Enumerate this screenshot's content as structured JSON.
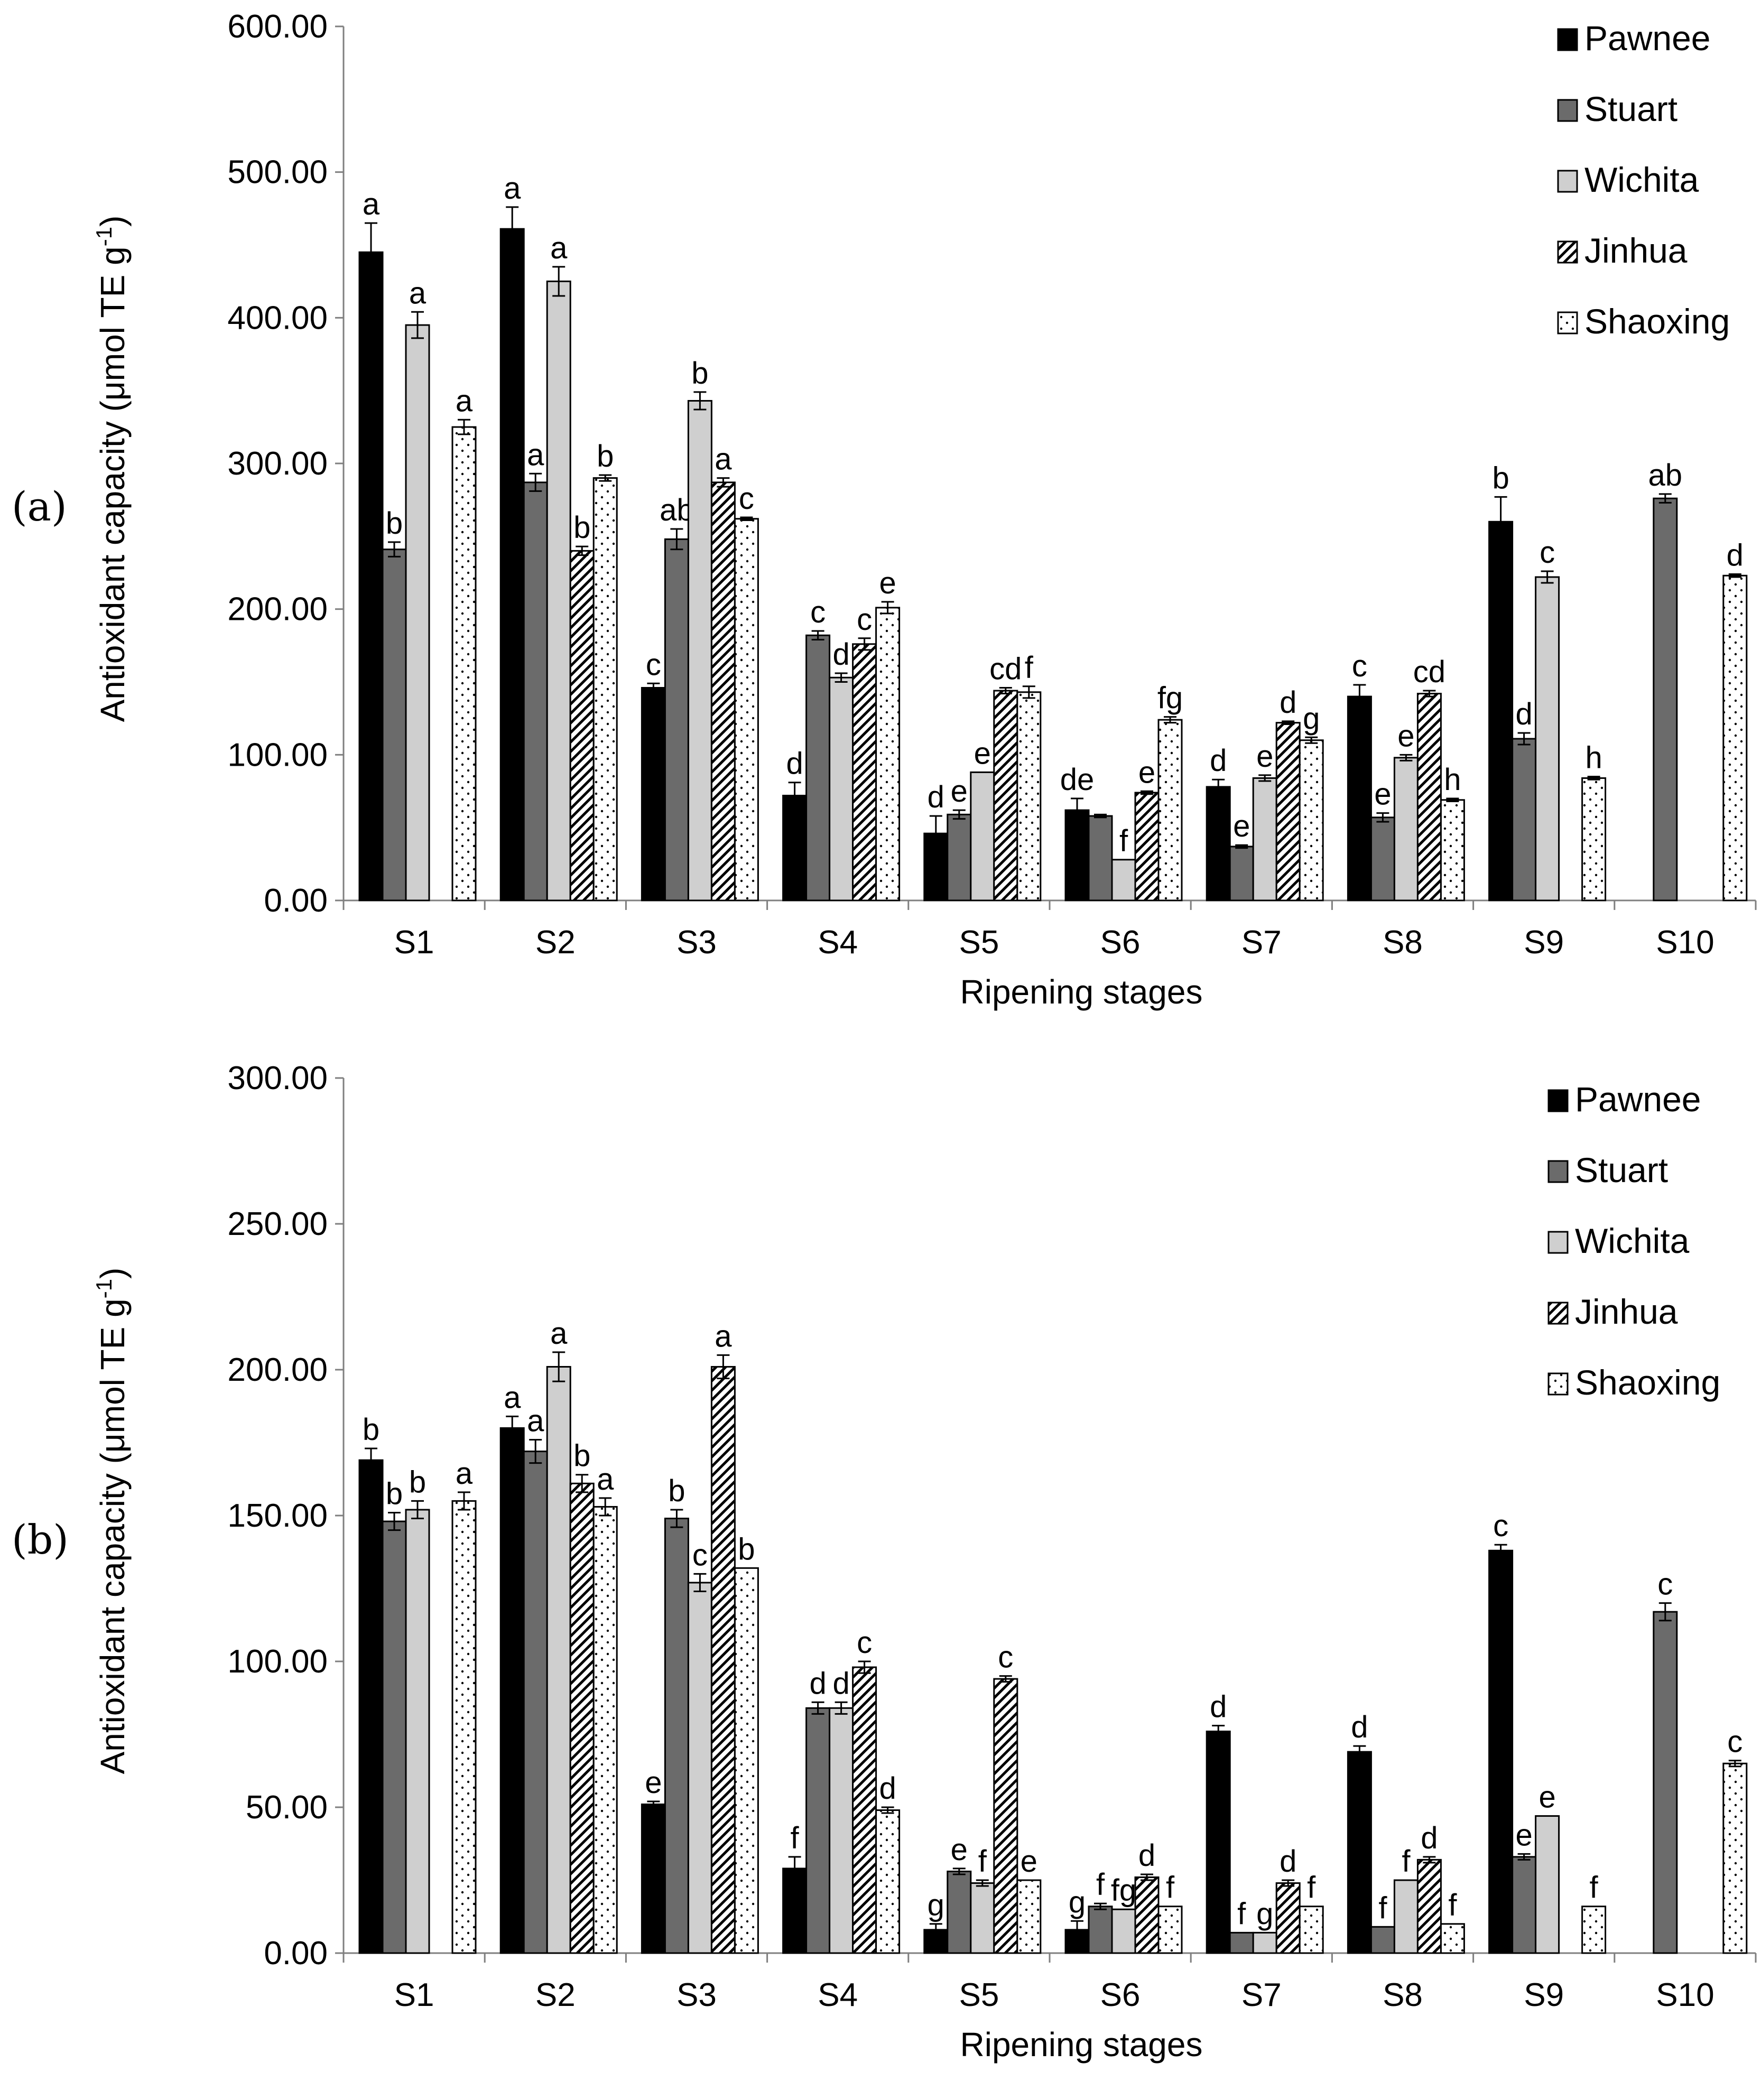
{
  "colors": {
    "Pawnee": "#000000",
    "Stuart": "#6b6b6b",
    "Wichita": "#cfcfcf",
    "Jinhua": "#ffffff",
    "Shaoxing": "#ffffff"
  },
  "chart_data": [
    {
      "type": "bar",
      "panel_label": "(a)",
      "title": "",
      "xlabel": "Ripening stages",
      "ylabel": "Antioxidant capacity (μmol TE g",
      "ylabel_sup": "-1",
      "ylabel_end": ")",
      "ylim": [
        0,
        600
      ],
      "yticks": [
        "0.00",
        "100.00",
        "200.00",
        "300.00",
        "400.00",
        "500.00",
        "600.00"
      ],
      "categories": [
        "S1",
        "S2",
        "S3",
        "S4",
        "S5",
        "S6",
        "S7",
        "S8",
        "S9",
        "S10"
      ],
      "legend_position": "top-right",
      "series": [
        {
          "name": "Pawnee",
          "pattern": "solid-black",
          "values": [
            445,
            461,
            146,
            72,
            46,
            62,
            78,
            140,
            260,
            null
          ],
          "errors": [
            20,
            15,
            3,
            9,
            12,
            8,
            5,
            8,
            17,
            null
          ],
          "labels": [
            "a",
            "a",
            "c",
            "d",
            "d",
            "de",
            "d",
            "c",
            "b",
            ""
          ]
        },
        {
          "name": "Stuart",
          "pattern": "solid-dark-gray",
          "values": [
            241,
            287,
            248,
            182,
            59,
            58,
            37,
            57,
            111,
            276
          ],
          "errors": [
            5,
            6,
            7,
            3,
            3,
            1,
            1,
            3,
            4,
            3
          ],
          "labels": [
            "b",
            "a",
            "ab",
            "c",
            "e",
            "",
            "e",
            "e",
            "d",
            "ab"
          ]
        },
        {
          "name": "Wichita",
          "pattern": "solid-light-gray",
          "values": [
            395,
            425,
            343,
            153,
            88,
            28,
            84,
            98,
            222,
            null
          ],
          "errors": [
            9,
            10,
            6,
            3,
            0,
            0,
            2,
            2,
            4,
            null
          ],
          "labels": [
            "a",
            "a",
            "b",
            "d",
            "e",
            "f",
            "e",
            "e",
            "c",
            ""
          ]
        },
        {
          "name": "Jinhua",
          "pattern": "diagonal-hatch",
          "values": [
            null,
            240,
            287,
            176,
            144,
            74,
            122,
            142,
            null,
            null
          ],
          "errors": [
            null,
            3,
            3,
            4,
            2,
            1,
            1,
            2,
            null,
            null
          ],
          "labels": [
            "",
            "b",
            "a",
            "c",
            "cd",
            "e",
            "d",
            "cd",
            "",
            ""
          ]
        },
        {
          "name": "Shaoxing",
          "pattern": "dotted",
          "values": [
            325,
            290,
            262,
            201,
            143,
            124,
            110,
            69,
            84,
            223
          ],
          "errors": [
            5,
            2,
            1,
            4,
            4,
            2,
            2,
            1,
            1,
            1
          ],
          "labels": [
            "a",
            "b",
            "c",
            "e",
            "f",
            "fg",
            "g",
            "h",
            "h",
            "d"
          ]
        }
      ]
    },
    {
      "type": "bar",
      "panel_label": "(b)",
      "title": "",
      "xlabel": "Ripening stages",
      "ylabel": "Antioxidant capacity (μmol TE g",
      "ylabel_sup": "-1",
      "ylabel_end": ")",
      "ylim": [
        0,
        300
      ],
      "yticks": [
        "0.00",
        "50.00",
        "100.00",
        "150.00",
        "200.00",
        "250.00",
        "300.00"
      ],
      "categories": [
        "S1",
        "S2",
        "S3",
        "S4",
        "S5",
        "S6",
        "S7",
        "S8",
        "S9",
        "S10"
      ],
      "legend_position": "top-right",
      "series": [
        {
          "name": "Pawnee",
          "pattern": "solid-black",
          "values": [
            169,
            180,
            51,
            29,
            8,
            8,
            76,
            69,
            138,
            null
          ],
          "errors": [
            4,
            4,
            1,
            4,
            2,
            3,
            2,
            2,
            2,
            null
          ],
          "labels": [
            "b",
            "a",
            "e",
            "f",
            "g",
            "g",
            "d",
            "d",
            "c",
            ""
          ]
        },
        {
          "name": "Stuart",
          "pattern": "solid-dark-gray",
          "values": [
            148,
            172,
            149,
            84,
            28,
            16,
            7,
            9,
            33,
            117
          ],
          "errors": [
            3,
            4,
            3,
            2,
            1,
            1,
            0,
            0,
            1,
            3
          ],
          "labels": [
            "b",
            "a",
            "b",
            "d",
            "e",
            "f",
            "f",
            "f",
            "e",
            "c"
          ]
        },
        {
          "name": "Wichita",
          "pattern": "solid-light-gray",
          "values": [
            152,
            201,
            127,
            84,
            24,
            15,
            7,
            25,
            47,
            null
          ],
          "errors": [
            3,
            5,
            3,
            2,
            1,
            0,
            0,
            0,
            0,
            null
          ],
          "labels": [
            "b",
            "a",
            "c",
            "d",
            "f",
            "fg",
            "g",
            "f",
            "e",
            ""
          ]
        },
        {
          "name": "Jinhua",
          "pattern": "diagonal-hatch",
          "values": [
            null,
            161,
            201,
            98,
            94,
            26,
            24,
            32,
            null,
            null
          ],
          "errors": [
            null,
            3,
            4,
            2,
            1,
            1,
            1,
            1,
            null,
            null
          ],
          "labels": [
            "",
            "b",
            "a",
            "c",
            "c",
            "d",
            "d",
            "d",
            "",
            ""
          ]
        },
        {
          "name": "Shaoxing",
          "pattern": "dotted",
          "values": [
            155,
            153,
            132,
            49,
            25,
            16,
            16,
            10,
            16,
            65
          ],
          "errors": [
            3,
            3,
            0,
            1,
            0,
            0,
            0,
            0,
            0,
            1
          ],
          "labels": [
            "a",
            "a",
            "b",
            "d",
            "e",
            "f",
            "f",
            "f",
            "f",
            "c"
          ]
        }
      ]
    }
  ]
}
